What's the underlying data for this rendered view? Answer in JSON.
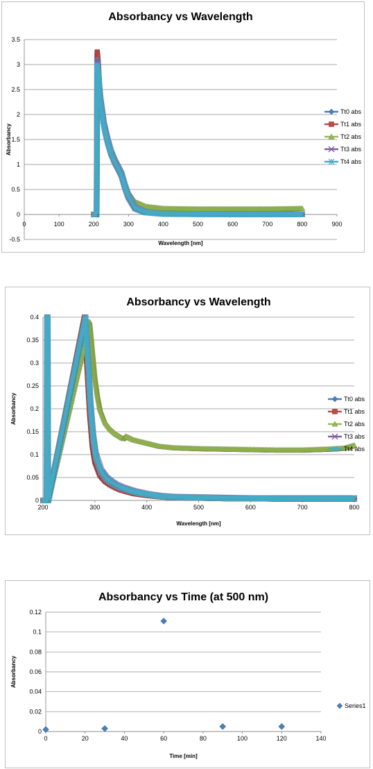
{
  "chart_data": [
    {
      "type": "line",
      "title": "Absorbancy vs Wavelength",
      "xlabel": "Wavelength [nm]",
      "ylabel": "Absorbancy",
      "xlim": [
        0,
        900
      ],
      "ylim": [
        -0.5,
        3.5
      ],
      "xticks": [
        "0",
        "100",
        "200",
        "300",
        "400",
        "500",
        "600",
        "700",
        "800",
        "900"
      ],
      "yticks": [
        "3.5",
        "3",
        "2.5",
        "2",
        "1.5",
        "1",
        "0.5",
        "0",
        "-0.5"
      ],
      "grid": true,
      "legend_position": "right",
      "series": [
        {
          "name": "Tt0 abs",
          "color": "#4a7ebb",
          "marker": "diamond",
          "x": [
            200,
            208,
            209,
            210,
            213,
            216,
            220,
            230,
            240,
            250,
            260,
            270,
            280,
            290,
            300,
            320,
            350,
            400,
            500,
            600,
            700,
            800
          ],
          "y": [
            0,
            0,
            0.9,
            3.2,
            3.0,
            2.6,
            2.3,
            1.8,
            1.5,
            1.25,
            1.08,
            0.95,
            0.8,
            0.55,
            0.35,
            0.12,
            0.04,
            0.01,
            0.005,
            0.003,
            0.003,
            0.003
          ]
        },
        {
          "name": "Tt1 abs",
          "color": "#be4b48",
          "marker": "square",
          "x": [
            200,
            208,
            209,
            210,
            213,
            216,
            220,
            230,
            240,
            250,
            260,
            270,
            280,
            290,
            300,
            320,
            350,
            400,
            500,
            600,
            700,
            800
          ],
          "y": [
            0,
            0,
            0.9,
            3.25,
            3.0,
            2.6,
            2.3,
            1.8,
            1.5,
            1.25,
            1.08,
            0.95,
            0.8,
            0.55,
            0.35,
            0.12,
            0.04,
            0.01,
            0.005,
            0.003,
            0.003,
            0.003
          ]
        },
        {
          "name": "Tt2 abs",
          "color": "#98b954",
          "marker": "triangle",
          "x": [
            200,
            208,
            209,
            210,
            213,
            216,
            220,
            230,
            240,
            250,
            260,
            270,
            280,
            290,
            300,
            320,
            350,
            400,
            500,
            600,
            700,
            800
          ],
          "y": [
            0,
            0,
            0.9,
            3.1,
            2.95,
            2.6,
            2.3,
            1.8,
            1.5,
            1.25,
            1.1,
            0.98,
            0.85,
            0.62,
            0.45,
            0.25,
            0.16,
            0.12,
            0.11,
            0.11,
            0.11,
            0.12
          ]
        },
        {
          "name": "Tt3 abs",
          "color": "#7d60a0",
          "marker": "x",
          "x": [
            200,
            208,
            209,
            210,
            213,
            216,
            220,
            230,
            240,
            250,
            260,
            270,
            280,
            290,
            300,
            320,
            350,
            400,
            500,
            600,
            700,
            800
          ],
          "y": [
            0,
            0,
            0.9,
            3.1,
            2.9,
            2.55,
            2.25,
            1.78,
            1.48,
            1.24,
            1.07,
            0.94,
            0.8,
            0.56,
            0.36,
            0.13,
            0.045,
            0.012,
            0.006,
            0.004,
            0.003,
            0.003
          ]
        },
        {
          "name": "Tt4 abs",
          "color": "#46aac5",
          "marker": "star",
          "x": [
            200,
            208,
            209,
            210,
            213,
            216,
            220,
            230,
            240,
            250,
            260,
            270,
            280,
            290,
            300,
            320,
            350,
            400,
            500,
            600,
            700,
            800
          ],
          "y": [
            0,
            0,
            0.9,
            3.0,
            2.85,
            2.5,
            2.2,
            1.75,
            1.46,
            1.22,
            1.06,
            0.93,
            0.79,
            0.55,
            0.35,
            0.12,
            0.04,
            0.01,
            0.005,
            0.003,
            0.003,
            0.003
          ]
        }
      ]
    },
    {
      "type": "line",
      "title": "Absorbancy vs Wavelength",
      "xlabel": "Wavelength [nm]",
      "ylabel": "Absorbancy",
      "xlim": [
        200,
        800
      ],
      "ylim": [
        0,
        0.4
      ],
      "xticks": [
        "200",
        "300",
        "400",
        "500",
        "600",
        "700",
        "800"
      ],
      "yticks": [
        "0.4",
        "0.35",
        "0.3",
        "0.25",
        "0.2",
        "0.15",
        "0.1",
        "0.05",
        "0"
      ],
      "grid": true,
      "legend_position": "right",
      "series": [
        {
          "name": "Tt0 abs",
          "color": "#4a7ebb",
          "marker": "diamond",
          "x": [
            200,
            207,
            208,
            209,
            210,
            280,
            285,
            290,
            295,
            300,
            310,
            320,
            330,
            340,
            350,
            375,
            400,
            425,
            450,
            500,
            550,
            600,
            650,
            700,
            750,
            800
          ],
          "y": [
            0,
            0,
            0.4,
            0.4,
            0,
            0.4,
            0.3,
            0.2,
            0.13,
            0.09,
            0.06,
            0.045,
            0.037,
            0.03,
            0.025,
            0.017,
            0.012,
            0.009,
            0.007,
            0.006,
            0.005,
            0.005,
            0.004,
            0.004,
            0.004,
            0.004
          ]
        },
        {
          "name": "Tt1 abs",
          "color": "#be4b48",
          "marker": "square",
          "x": [
            200,
            207,
            208,
            209,
            210,
            280,
            285,
            290,
            295,
            300,
            310,
            320,
            330,
            340,
            350,
            375,
            400,
            425,
            450,
            500,
            550,
            600,
            650,
            700,
            750,
            800
          ],
          "y": [
            0,
            0,
            0.4,
            0.4,
            0,
            0.4,
            0.29,
            0.19,
            0.12,
            0.085,
            0.055,
            0.042,
            0.034,
            0.028,
            0.023,
            0.015,
            0.011,
            0.008,
            0.006,
            0.005,
            0.004,
            0.004,
            0.003,
            0.003,
            0.003,
            0.003
          ]
        },
        {
          "name": "Tt2 abs",
          "color": "#98b954",
          "marker": "triangle",
          "x": [
            200,
            207,
            208,
            209,
            210,
            290,
            295,
            300,
            305,
            310,
            320,
            330,
            340,
            350,
            355,
            360,
            375,
            400,
            425,
            450,
            500,
            550,
            600,
            650,
            700,
            750,
            780,
            800
          ],
          "y": [
            0,
            0,
            0.4,
            0.4,
            0,
            0.39,
            0.33,
            0.27,
            0.23,
            0.2,
            0.17,
            0.155,
            0.145,
            0.138,
            0.135,
            0.14,
            0.132,
            0.125,
            0.118,
            0.115,
            0.113,
            0.112,
            0.111,
            0.11,
            0.11,
            0.112,
            0.114,
            0.12
          ]
        },
        {
          "name": "Tt3 abs",
          "color": "#7d60a0",
          "marker": "x",
          "x": [
            200,
            207,
            208,
            209,
            210,
            282,
            287,
            292,
            297,
            302,
            312,
            322,
            332,
            342,
            352,
            377,
            402,
            427,
            452,
            500,
            550,
            600,
            650,
            700,
            750,
            800
          ],
          "y": [
            0,
            0,
            0.4,
            0.4,
            0,
            0.4,
            0.31,
            0.21,
            0.14,
            0.1,
            0.066,
            0.05,
            0.041,
            0.034,
            0.029,
            0.02,
            0.014,
            0.01,
            0.008,
            0.007,
            0.006,
            0.005,
            0.005,
            0.005,
            0.005,
            0.005
          ]
        },
        {
          "name": "Tt4 abs",
          "color": "#46aac5",
          "marker": "star",
          "x": [
            200,
            207,
            208,
            209,
            210,
            282,
            287,
            292,
            297,
            302,
            312,
            322,
            332,
            342,
            352,
            377,
            402,
            427,
            452,
            500,
            550,
            600,
            650,
            700,
            750,
            800
          ],
          "y": [
            0,
            0,
            0.4,
            0.4,
            0,
            0.4,
            0.3,
            0.2,
            0.135,
            0.095,
            0.063,
            0.048,
            0.039,
            0.032,
            0.027,
            0.018,
            0.013,
            0.009,
            0.007,
            0.006,
            0.005,
            0.005,
            0.004,
            0.004,
            0.004,
            0.004
          ]
        }
      ]
    },
    {
      "type": "scatter",
      "title": "Absorbancy vs Time (at 500 nm)",
      "xlabel": "Time [min]",
      "ylabel": "Absorbancy",
      "xlim": [
        0,
        140
      ],
      "ylim": [
        0,
        0.12
      ],
      "xticks": [
        "0",
        "20",
        "40",
        "60",
        "80",
        "100",
        "120",
        "140"
      ],
      "yticks": [
        "0.12",
        "0.1",
        "0.08",
        "0.06",
        "0.04",
        "0.02",
        "0"
      ],
      "grid": true,
      "legend_position": "right",
      "series": [
        {
          "name": "Series1",
          "color": "#4a7ebb",
          "marker": "diamond",
          "x": [
            0,
            30,
            60,
            90,
            120
          ],
          "y": [
            0.002,
            0.003,
            0.111,
            0.005,
            0.005
          ]
        }
      ]
    }
  ]
}
